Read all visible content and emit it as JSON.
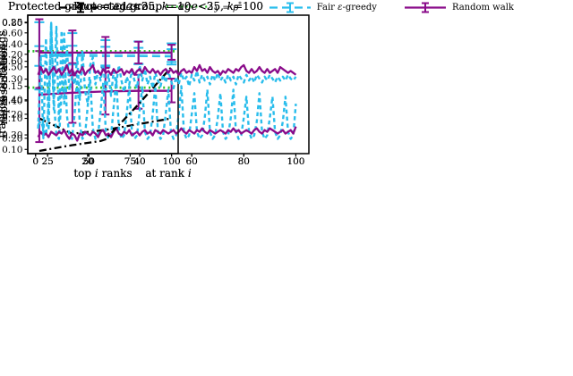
{
  "figure": {
    "background": "#ffffff",
    "text_color": "#000000"
  },
  "colors": {
    "gdl21": "#000000",
    "p_star": "#2fc32f",
    "fair": "#29bdec",
    "random_walk": "#8a0c8a"
  },
  "legend": {
    "items": [
      {
        "key": "gdl21",
        "style": "dashdot",
        "errorbar": true,
        "label_parts": [
          {
            "t": "GDL21"
          }
        ]
      },
      {
        "key": "p_star",
        "style": "dotted",
        "errorbar": false,
        "label_parts": [
          {
            "t": "y",
            "i": 1
          },
          {
            "t": " = "
          },
          {
            "t": "p",
            "i": 1
          },
          {
            "t": "*",
            "sup": 1
          }
        ]
      },
      {
        "key": "fair",
        "style": "dashed",
        "errorbar": true,
        "label_parts": [
          {
            "t": "Fair "
          },
          {
            "t": "ε",
            "i": 1
          },
          {
            "t": "-greedy"
          }
        ]
      },
      {
        "key": "random_walk",
        "style": "solid",
        "errorbar": true,
        "label_parts": [
          {
            "t": "Random walk"
          }
        ]
      }
    ]
  },
  "chart_data": [
    {
      "type": "line",
      "position": "top-left",
      "title_parts": [
        {
          "t": "Protected group = "
        },
        {
          "t": "age",
          "i": 1
        },
        {
          "t": "<25, "
        },
        {
          "t": "k",
          "i": 1
        },
        {
          "t": "=100"
        }
      ],
      "xlabel_parts": [
        {
          "t": "top "
        },
        {
          "t": "i",
          "i": 1
        },
        {
          "t": " ranks"
        }
      ],
      "ylabel": "representation",
      "xlim": [
        13,
        104
      ],
      "ylim": [
        0.045,
        0.261
      ],
      "xticks": [
        25,
        50,
        75,
        100
      ],
      "yticks": [
        0.1,
        0.15,
        0.2,
        0.25
      ],
      "ytick_decimals": 2,
      "series": [
        {
          "name": "GDL21",
          "color_key": "gdl21",
          "style": "dashdot",
          "x": [
            20,
            40,
            60,
            80,
            100
          ],
          "y": [
            0.1,
            0.076,
            0.082,
            0.091,
            0.1
          ]
        },
        {
          "name": "Fair ε-greedy",
          "color_key": "fair",
          "style": "dashed",
          "x": [
            20,
            40,
            60,
            80,
            100
          ],
          "y": [
            0.197,
            0.201,
            0.202,
            0.202,
            0.202
          ],
          "err_lo": [
            0.145,
            0.17,
            0.18,
            0.185,
            0.188
          ],
          "err_hi": [
            0.25,
            0.233,
            0.222,
            0.22,
            0.217
          ]
        },
        {
          "name": "y = p*",
          "color_key": "p_star",
          "style": "dotted",
          "x": [
            13,
            104
          ],
          "y": [
            0.148,
            0.148
          ]
        },
        {
          "name": "Random walk",
          "color_key": "random_walk",
          "style": "solid",
          "x": [
            20,
            40,
            60,
            80,
            100
          ],
          "y": [
            0.137,
            0.14,
            0.142,
            0.143,
            0.143
          ],
          "err_lo": [
            0.063,
            0.093,
            0.106,
            0.115,
            0.125
          ],
          "err_hi": [
            0.205,
            0.186,
            0.179,
            0.168,
            0.162
          ]
        }
      ]
    },
    {
      "type": "line",
      "position": "top-right",
      "title_parts": [
        {
          "t": "Protected group = "
        },
        {
          "t": "age",
          "i": 1
        },
        {
          "t": "<25, "
        },
        {
          "t": "k",
          "i": 1
        },
        {
          "t": "=100"
        }
      ],
      "xlabel_parts": [
        {
          "t": "at rank "
        },
        {
          "t": "i",
          "i": 1
        }
      ],
      "ylabel": "fraction of rankings",
      "xlim": [
        -3,
        105
      ],
      "ylim": [
        0.088,
        0.482
      ],
      "xticks": [
        0,
        20,
        40,
        60,
        80,
        100
      ],
      "yticks": [
        0.1,
        0.2,
        0.3,
        0.4
      ],
      "ytick_decimals": 2,
      "series": [
        {
          "name": "Fair ε-greedy",
          "color_key": "fair",
          "style": "dashed",
          "x_range": [
            1,
            100
          ],
          "y": [
            0.17,
            0.18,
            0.16,
            0.14,
            0.22,
            0.46,
            0.24,
            0.14,
            0.13,
            0.26,
            0.43,
            0.2,
            0.14,
            0.13,
            0.2,
            0.31,
            0.17,
            0.13,
            0.14,
            0.22,
            0.3,
            0.16,
            0.13,
            0.14,
            0.21,
            0.29,
            0.15,
            0.13,
            0.14,
            0.22,
            0.3,
            0.16,
            0.13,
            0.14,
            0.2,
            0.28,
            0.15,
            0.13,
            0.14,
            0.21,
            0.28,
            0.15,
            0.13,
            0.14,
            0.2,
            0.28,
            0.15,
            0.13,
            0.14,
            0.2,
            0.27,
            0.15,
            0.13,
            0.14,
            0.2,
            0.28,
            0.15,
            0.13,
            0.14,
            0.2,
            0.26,
            0.15,
            0.13,
            0.14,
            0.19,
            0.27,
            0.15,
            0.13,
            0.14,
            0.19,
            0.26,
            0.15,
            0.13,
            0.14,
            0.19,
            0.27,
            0.15,
            0.13,
            0.14,
            0.19,
            0.25,
            0.15,
            0.13,
            0.14,
            0.18,
            0.26,
            0.15,
            0.13,
            0.14,
            0.19,
            0.25,
            0.15,
            0.13,
            0.14,
            0.18,
            0.25,
            0.15,
            0.13,
            0.14,
            0.23
          ]
        },
        {
          "name": "Random walk",
          "color_key": "random_walk",
          "style": "solid",
          "x_range": [
            1,
            100
          ],
          "y": [
            0.135,
            0.15,
            0.14,
            0.145,
            0.135,
            0.15,
            0.145,
            0.14,
            0.15,
            0.145,
            0.155,
            0.14,
            0.13,
            0.145,
            0.14,
            0.125,
            0.145,
            0.14,
            0.15,
            0.145,
            0.14,
            0.15,
            0.145,
            0.135,
            0.15,
            0.155,
            0.14,
            0.145,
            0.135,
            0.15,
            0.16,
            0.145,
            0.14,
            0.15,
            0.145,
            0.155,
            0.14,
            0.145,
            0.15,
            0.14,
            0.15,
            0.155,
            0.145,
            0.15,
            0.14,
            0.155,
            0.15,
            0.145,
            0.155,
            0.15,
            0.145,
            0.15,
            0.155,
            0.145,
            0.15,
            0.16,
            0.15,
            0.145,
            0.155,
            0.15,
            0.145,
            0.155,
            0.15,
            0.16,
            0.15,
            0.145,
            0.155,
            0.15,
            0.145,
            0.15,
            0.155,
            0.15,
            0.145,
            0.155,
            0.15,
            0.16,
            0.15,
            0.155,
            0.145,
            0.15,
            0.155,
            0.15,
            0.145,
            0.155,
            0.16,
            0.15,
            0.145,
            0.155,
            0.15,
            0.16,
            0.155,
            0.15,
            0.145,
            0.15,
            0.155,
            0.145,
            0.15,
            0.155,
            0.145,
            0.165
          ]
        }
      ]
    },
    {
      "type": "line",
      "position": "bottom-left",
      "title_parts": [
        {
          "t": "Protected group = "
        },
        {
          "t": "age",
          "i": 1
        },
        {
          "t": "<35, "
        },
        {
          "t": "k",
          "i": 1
        },
        {
          "t": "=100"
        }
      ],
      "xlabel_parts": [
        {
          "t": "top "
        },
        {
          "t": "i",
          "i": 1
        },
        {
          "t": " ranks"
        }
      ],
      "ylabel": "representation",
      "xlim": [
        13,
        104
      ],
      "ylim": [
        0.245,
        0.652
      ],
      "xticks": [
        25,
        50,
        75,
        100
      ],
      "yticks": [
        0.3,
        0.4,
        0.5,
        0.6
      ],
      "ytick_decimals": 2,
      "series": [
        {
          "name": "GDL21",
          "color_key": "gdl21",
          "style": "dashdot",
          "x": [
            20,
            40,
            57,
            60,
            80,
            100
          ],
          "y": [
            0.253,
            0.27,
            0.282,
            0.287,
            0.39,
            0.5
          ]
        },
        {
          "name": "Fair ε-greedy",
          "color_key": "fair",
          "style": "dashed",
          "x": [
            20,
            40,
            60,
            80,
            100
          ],
          "y": [
            0.532,
            0.533,
            0.532,
            0.532,
            0.531
          ],
          "err_lo": [
            0.503,
            0.507,
            0.504,
            0.508,
            0.507
          ],
          "err_hi": [
            0.561,
            0.562,
            0.559,
            0.556,
            0.552
          ]
        },
        {
          "name": "y = p*",
          "color_key": "p_star",
          "style": "dotted",
          "x": [
            13,
            104
          ],
          "y": [
            0.546,
            0.546
          ]
        },
        {
          "name": "Random walk",
          "color_key": "random_walk",
          "style": "solid",
          "x": [
            20,
            40,
            60,
            80,
            100
          ],
          "y": [
            0.542,
            0.542,
            0.542,
            0.542,
            0.542
          ],
          "err_lo": [
            0.438,
            0.475,
            0.497,
            0.51,
            0.521
          ],
          "err_hi": [
            0.64,
            0.607,
            0.588,
            0.574,
            0.565
          ]
        }
      ]
    },
    {
      "type": "line",
      "position": "bottom-right",
      "title_parts": [
        {
          "t": "Protected group = "
        },
        {
          "t": "age",
          "i": 1
        },
        {
          "t": "<35, "
        },
        {
          "t": "k",
          "i": 1
        },
        {
          "t": "=100"
        }
      ],
      "xlabel_parts": [
        {
          "t": "at rank "
        },
        {
          "t": "i",
          "i": 1
        }
      ],
      "ylabel": "fraction of rankings",
      "xlim": [
        -3,
        105
      ],
      "ylim": [
        0.12,
        0.84
      ],
      "xticks": [
        0,
        20,
        40,
        60,
        80,
        100
      ],
      "yticks": [
        0.2,
        0.4,
        0.6,
        0.8
      ],
      "ytick_decimals": 2,
      "series": [
        {
          "name": "Fair ε-greedy",
          "color_key": "fair",
          "style": "dashed",
          "x_range": [
            1,
            100
          ],
          "y": [
            0.25,
            0.62,
            0.2,
            0.72,
            0.24,
            0.8,
            0.35,
            0.78,
            0.28,
            0.76,
            0.38,
            0.68,
            0.45,
            0.52,
            0.48,
            0.62,
            0.4,
            0.65,
            0.45,
            0.38,
            0.58,
            0.62,
            0.48,
            0.55,
            0.5,
            0.58,
            0.45,
            0.53,
            0.42,
            0.55,
            0.48,
            0.58,
            0.5,
            0.44,
            0.52,
            0.48,
            0.55,
            0.5,
            0.46,
            0.58,
            0.5,
            0.56,
            0.48,
            0.52,
            0.46,
            0.54,
            0.5,
            0.47,
            0.53,
            0.49,
            0.55,
            0.5,
            0.46,
            0.52,
            0.48,
            0.54,
            0.5,
            0.52,
            0.47,
            0.53,
            0.5,
            0.55,
            0.49,
            0.53,
            0.5,
            0.52,
            0.48,
            0.53,
            0.5,
            0.54,
            0.5,
            0.52,
            0.49,
            0.53,
            0.5,
            0.52,
            0.48,
            0.53,
            0.51,
            0.49,
            0.53,
            0.5,
            0.52,
            0.49,
            0.53,
            0.51,
            0.49,
            0.52,
            0.5,
            0.53,
            0.51,
            0.49,
            0.52,
            0.5,
            0.52,
            0.5,
            0.53,
            0.51,
            0.5,
            0.52
          ]
        },
        {
          "name": "Random walk",
          "color_key": "random_walk",
          "style": "solid",
          "x_range": [
            1,
            100
          ],
          "y": [
            0.53,
            0.57,
            0.54,
            0.56,
            0.53,
            0.55,
            0.57,
            0.54,
            0.56,
            0.53,
            0.55,
            0.58,
            0.54,
            0.56,
            0.53,
            0.55,
            0.54,
            0.57,
            0.53,
            0.55,
            0.56,
            0.58,
            0.54,
            0.55,
            0.53,
            0.56,
            0.54,
            0.55,
            0.53,
            0.56,
            0.54,
            0.55,
            0.56,
            0.53,
            0.55,
            0.54,
            0.56,
            0.53,
            0.55,
            0.56,
            0.54,
            0.57,
            0.55,
            0.54,
            0.56,
            0.54,
            0.55,
            0.53,
            0.55,
            0.56,
            0.54,
            0.56,
            0.54,
            0.55,
            0.53,
            0.55,
            0.56,
            0.54,
            0.55,
            0.54,
            0.57,
            0.55,
            0.58,
            0.55,
            0.56,
            0.54,
            0.57,
            0.55,
            0.54,
            0.55,
            0.53,
            0.55,
            0.54,
            0.56,
            0.55,
            0.54,
            0.56,
            0.55,
            0.57,
            0.58,
            0.55,
            0.54,
            0.56,
            0.54,
            0.55,
            0.57,
            0.55,
            0.54,
            0.56,
            0.54,
            0.55,
            0.56,
            0.54,
            0.57,
            0.56,
            0.55,
            0.54,
            0.55,
            0.54,
            0.53
          ]
        }
      ]
    }
  ]
}
